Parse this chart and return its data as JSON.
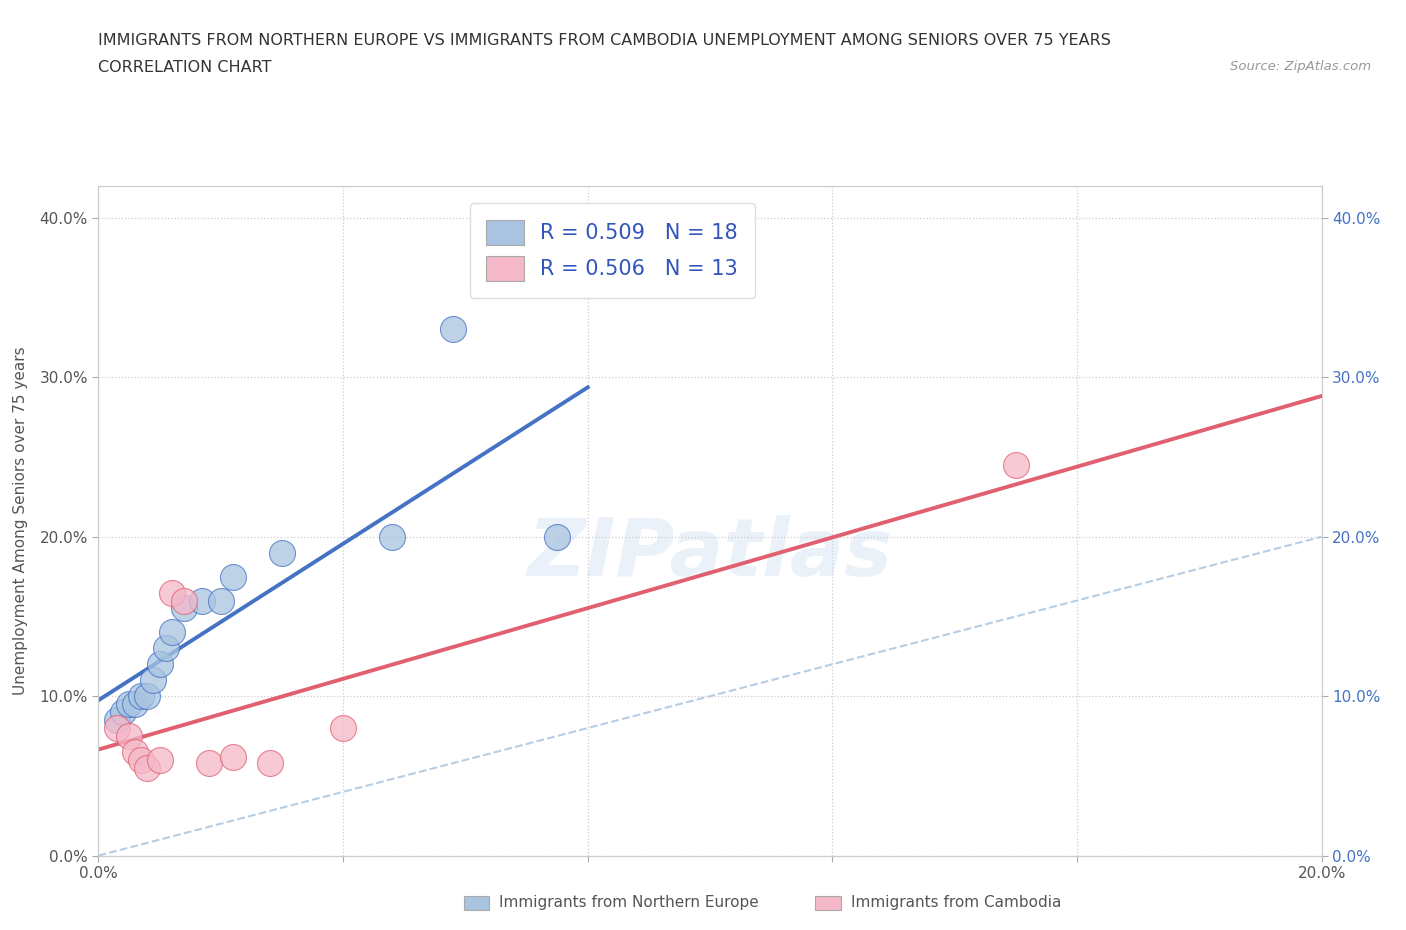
{
  "title_line1": "IMMIGRANTS FROM NORTHERN EUROPE VS IMMIGRANTS FROM CAMBODIA UNEMPLOYMENT AMONG SENIORS OVER 75 YEARS",
  "title_line2": "CORRELATION CHART",
  "source_text": "Source: ZipAtlas.com",
  "ylabel": "Unemployment Among Seniors over 75 years",
  "x_min": 0.0,
  "x_max": 0.2,
  "y_min": 0.0,
  "y_max": 0.42,
  "x_ticks": [
    0.0,
    0.04,
    0.08,
    0.12,
    0.16,
    0.2
  ],
  "y_ticks": [
    0.0,
    0.1,
    0.2,
    0.3,
    0.4
  ],
  "blue_scatter_x": [
    0.003,
    0.004,
    0.005,
    0.006,
    0.007,
    0.008,
    0.009,
    0.01,
    0.011,
    0.012,
    0.014,
    0.017,
    0.02,
    0.022,
    0.03,
    0.048,
    0.058,
    0.075
  ],
  "blue_scatter_y": [
    0.085,
    0.09,
    0.095,
    0.095,
    0.1,
    0.1,
    0.11,
    0.12,
    0.13,
    0.14,
    0.155,
    0.16,
    0.16,
    0.175,
    0.19,
    0.2,
    0.33,
    0.2
  ],
  "pink_scatter_x": [
    0.003,
    0.005,
    0.006,
    0.007,
    0.008,
    0.01,
    0.012,
    0.014,
    0.018,
    0.022,
    0.028,
    0.04,
    0.15
  ],
  "pink_scatter_y": [
    0.08,
    0.075,
    0.065,
    0.06,
    0.055,
    0.06,
    0.165,
    0.16,
    0.058,
    0.062,
    0.058,
    0.08,
    0.245
  ],
  "blue_color": "#a8c4e0",
  "pink_color": "#f4b8c8",
  "blue_line_color": "#4472c4",
  "pink_line_color": "#e06070",
  "diagonal_color": "#b0c8e0",
  "R_blue": 0.509,
  "N_blue": 18,
  "R_pink": 0.506,
  "N_pink": 13,
  "scatter_size": 350,
  "background_color": "#ffffff",
  "watermark_text": "ZIPatlas",
  "legend_label_blue": "Immigrants from Northern Europe",
  "legend_label_pink": "Immigrants from Cambodia"
}
